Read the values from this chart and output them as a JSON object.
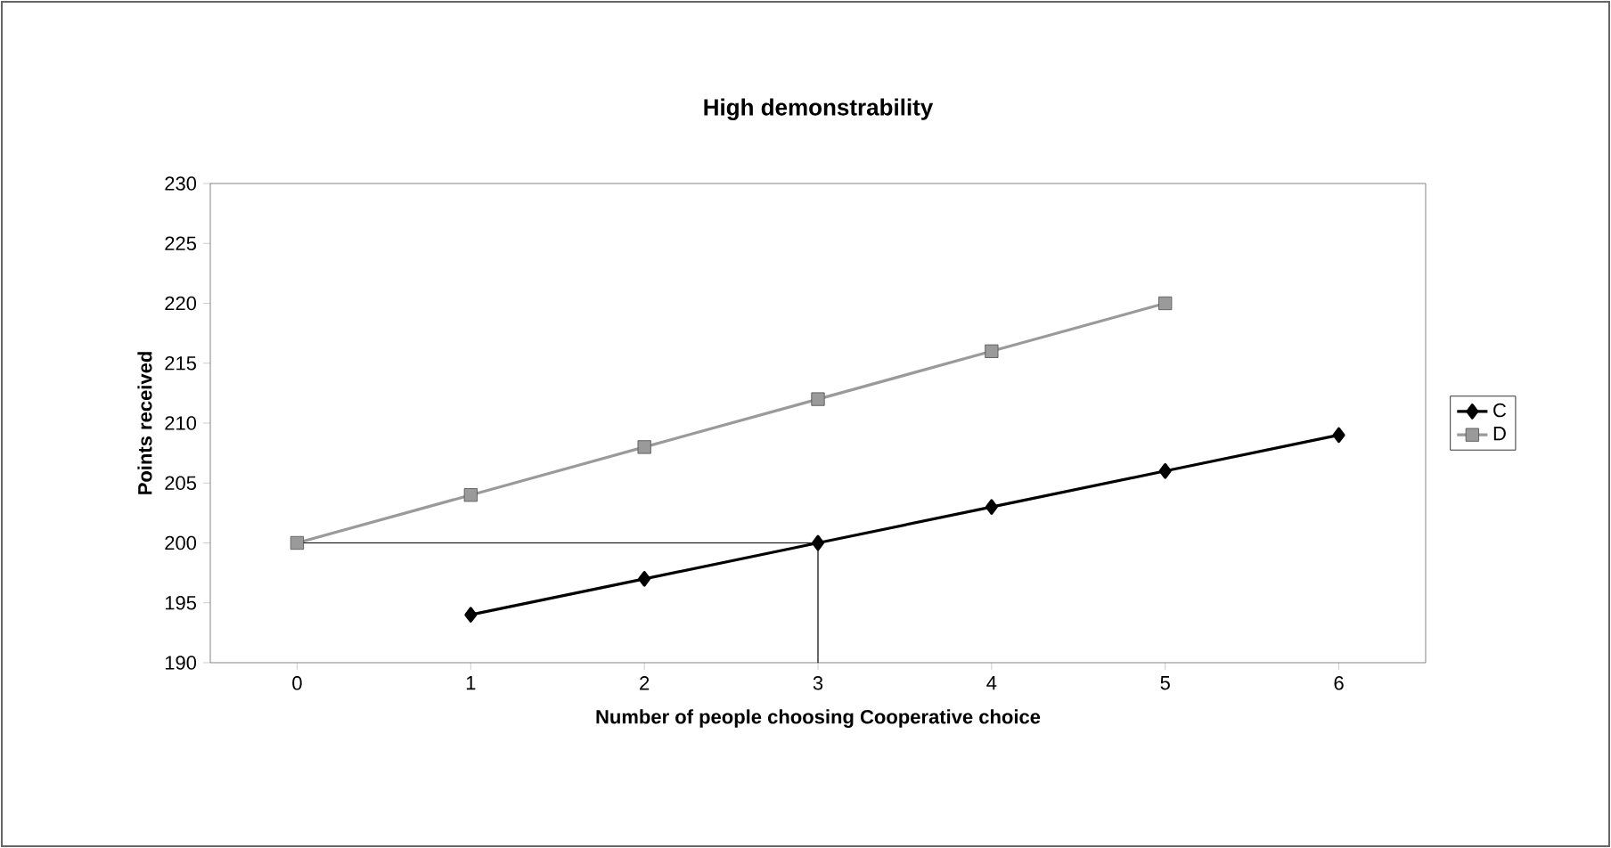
{
  "chart_data": {
    "type": "line",
    "title": "High demonstrability",
    "xlabel": "Number of people choosing Cooperative choice",
    "ylabel": "Points received",
    "xlim": [
      -0.5,
      6.5
    ],
    "xticks": [
      0,
      1,
      2,
      3,
      4,
      5,
      6
    ],
    "ylim": [
      190,
      230
    ],
    "yticks": [
      190,
      195,
      200,
      205,
      210,
      215,
      220,
      225,
      230
    ],
    "series": [
      {
        "name": "C",
        "color": "#000000",
        "marker": "diamond",
        "x": [
          1,
          2,
          3,
          4,
          5,
          6
        ],
        "values": [
          194,
          197,
          200,
          203,
          206,
          209
        ]
      },
      {
        "name": "D",
        "color": "#9a9a9a",
        "marker": "square",
        "x": [
          0,
          1,
          2,
          3,
          4,
          5
        ],
        "values": [
          200,
          204,
          208,
          212,
          216,
          220
        ]
      },
      {
        "color": "#000000",
        "marker": "none",
        "x": [
          0,
          3,
          3
        ],
        "values": [
          200,
          200,
          190
        ]
      }
    ],
    "grid": false,
    "legend": "right"
  }
}
